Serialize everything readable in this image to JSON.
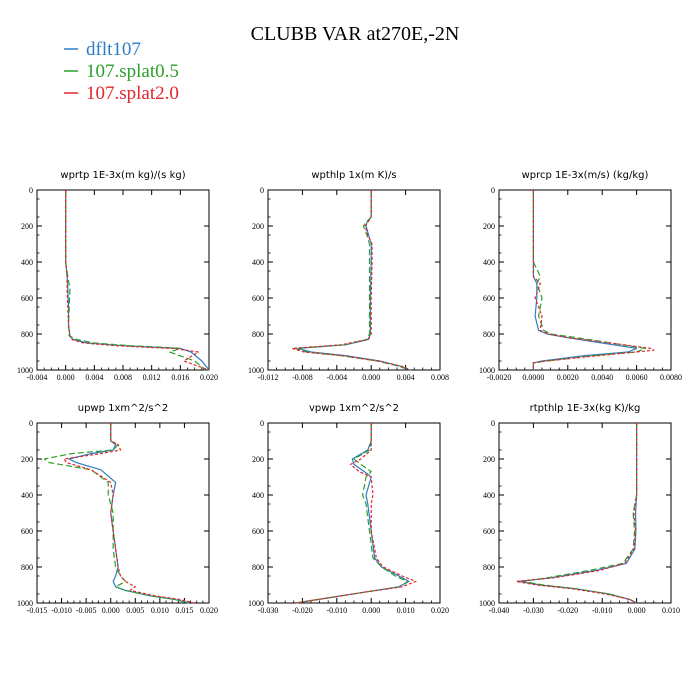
{
  "figure": {
    "title": "CLUBB VAR at270E,-2N"
  },
  "legend": [
    {
      "label": "dflt107",
      "color": "#2e7cc4",
      "dash": ""
    },
    {
      "label": "107.splat0.5",
      "color": "#2ca02c",
      "dash": "6,3"
    },
    {
      "label": "107.splat2.0",
      "color": "#e0262a",
      "dash": "3,2"
    }
  ],
  "chart_data": [
    {
      "type": "line",
      "title": "wprtp  1E-3x(m kg)/(s kg)",
      "xlim": [
        -0.004,
        0.02
      ],
      "xticks": [
        -0.004,
        0.0,
        0.004,
        0.008,
        0.012,
        0.016,
        0.02
      ],
      "xtick_labels": [
        "-0.004",
        "0.000",
        "0.004",
        "0.008",
        "0.012",
        "0.016",
        "0.020"
      ],
      "ylim": [
        1000,
        0
      ],
      "yticks": [
        0,
        200,
        400,
        600,
        800,
        1000
      ],
      "series": [
        {
          "x": [
            0.0,
            0.0,
            0.0,
            0.0002,
            0.0003,
            0.0004,
            0.0004,
            0.0006,
            0.001,
            0.003,
            0.008,
            0.013,
            0.016,
            0.0175,
            0.019,
            0.02
          ],
          "y": [
            0,
            200,
            400,
            480,
            550,
            650,
            750,
            810,
            830,
            850,
            865,
            875,
            880,
            900,
            950,
            1000
          ]
        },
        {
          "x": [
            0.0,
            0.0,
            0.0,
            0.0003,
            0.0006,
            0.0005,
            0.0004,
            0.0005,
            0.0015,
            0.004,
            0.009,
            0.014,
            0.016,
            0.0145,
            0.018,
            0.0195
          ],
          "y": [
            0,
            200,
            400,
            480,
            550,
            650,
            750,
            810,
            830,
            850,
            865,
            875,
            880,
            900,
            950,
            1000
          ]
        },
        {
          "x": [
            0.0,
            0.0,
            0.0,
            0.0002,
            0.0002,
            0.0003,
            0.0004,
            0.0006,
            0.0008,
            0.0025,
            0.007,
            0.012,
            0.015,
            0.0185,
            0.0165,
            0.02
          ],
          "y": [
            0,
            200,
            400,
            480,
            550,
            650,
            750,
            810,
            830,
            850,
            865,
            875,
            880,
            900,
            950,
            1000
          ]
        }
      ]
    },
    {
      "type": "line",
      "title": "wpthlp  1x(m K)/s",
      "xlim": [
        -0.012,
        0.008
      ],
      "xticks": [
        -0.012,
        -0.008,
        -0.004,
        0.0,
        0.004,
        0.008
      ],
      "xtick_labels": [
        "-0.012",
        "-0.008",
        "-0.004",
        "0.000",
        "0.004",
        "0.008"
      ],
      "ylim": [
        1000,
        0
      ],
      "yticks": [
        0,
        200,
        400,
        600,
        800,
        1000
      ],
      "series": [
        {
          "x": [
            0.0,
            0.0,
            -0.0005,
            -0.0006,
            -0.0003,
            0.0,
            0.0,
            -0.0001,
            -0.0001,
            -0.0003,
            -0.003,
            -0.0085,
            -0.007,
            -0.003,
            0.001,
            0.0035,
            0.0045
          ],
          "y": [
            0,
            150,
            180,
            200,
            250,
            300,
            400,
            600,
            800,
            830,
            860,
            880,
            900,
            920,
            950,
            980,
            1000
          ]
        },
        {
          "x": [
            0.0,
            0.0,
            -0.0006,
            -0.0009,
            -0.0005,
            -0.0002,
            -0.0002,
            -0.0002,
            -0.0002,
            -0.0005,
            -0.003,
            -0.0088,
            -0.0075,
            -0.0035,
            0.0007,
            0.0033,
            0.0044
          ],
          "y": [
            0,
            150,
            180,
            200,
            250,
            300,
            400,
            600,
            800,
            830,
            860,
            880,
            900,
            920,
            950,
            980,
            1000
          ]
        },
        {
          "x": [
            0.0,
            0.0,
            -0.0004,
            -0.0007,
            -0.0004,
            0.0001,
            0.0001,
            0.0,
            0.0,
            -0.0004,
            -0.0035,
            -0.0092,
            -0.0078,
            -0.0035,
            0.0008,
            0.0036,
            0.0046
          ],
          "y": [
            0,
            150,
            180,
            200,
            250,
            300,
            400,
            600,
            800,
            830,
            860,
            880,
            900,
            920,
            950,
            980,
            1000
          ]
        }
      ]
    },
    {
      "type": "line",
      "title": "wprcp  1E-3x(m/s) (kg/kg)",
      "xlim": [
        -0.002,
        0.008
      ],
      "xticks": [
        -0.002,
        0.0,
        0.002,
        0.004,
        0.006,
        0.008
      ],
      "xtick_labels": [
        "-0.0020",
        "0.0000",
        "0.0020",
        "0.0040",
        "0.0060",
        "0.0080"
      ],
      "ylim": [
        1000,
        0
      ],
      "yticks": [
        0,
        200,
        400,
        600,
        800,
        1000
      ],
      "series": [
        {
          "x": [
            0.0,
            0.0,
            0.0,
            0.0,
            0.0002,
            0.0002,
            0.0001,
            0.0003,
            0.0008,
            0.002,
            0.004,
            0.006,
            0.0055,
            0.003,
            0.0005,
            0.0,
            0.0
          ],
          "y": [
            0,
            200,
            400,
            480,
            520,
            600,
            700,
            780,
            800,
            820,
            850,
            880,
            900,
            920,
            950,
            960,
            1000
          ]
        },
        {
          "x": [
            0.0,
            0.0,
            0.0,
            0.0004,
            0.0002,
            0.0005,
            0.0003,
            0.0006,
            0.001,
            0.0025,
            0.0045,
            0.0065,
            0.006,
            0.0035,
            0.0008,
            0.0,
            0.0
          ],
          "y": [
            0,
            200,
            400,
            480,
            520,
            600,
            700,
            780,
            800,
            820,
            850,
            880,
            900,
            920,
            950,
            960,
            1000
          ]
        },
        {
          "x": [
            0.0,
            0.0,
            0.0,
            0.0,
            0.0004,
            0.0001,
            0.0005,
            0.0004,
            0.0009,
            0.002,
            0.0045,
            0.0068,
            0.007,
            0.0038,
            0.0007,
            0.0,
            0.0
          ],
          "y": [
            0,
            200,
            400,
            480,
            520,
            600,
            700,
            780,
            800,
            820,
            850,
            880,
            890,
            920,
            950,
            960,
            1000
          ]
        }
      ]
    },
    {
      "type": "line",
      "title": "upwp  1xm^2/s^2",
      "xlim": [
        -0.015,
        0.02
      ],
      "xticks": [
        -0.015,
        -0.01,
        -0.005,
        0.0,
        0.005,
        0.01,
        0.015,
        0.02
      ],
      "xtick_labels": [
        "-0.015",
        "-0.010",
        "-0.005",
        "0.000",
        "0.005",
        "0.010",
        "0.015",
        "0.020"
      ],
      "ylim": [
        1000,
        0
      ],
      "yticks": [
        0,
        200,
        400,
        600,
        800,
        1000
      ],
      "series": [
        {
          "x": [
            0.0,
            0.0,
            0.0,
            0.001,
            0.0005,
            -0.004,
            -0.0085,
            -0.007,
            -0.002,
            0.001,
            0.0005,
            0.0,
            0.0005,
            0.001,
            0.0015,
            0.001,
            0.0005,
            0.001,
            0.003,
            0.008,
            0.013,
            0.016
          ],
          "y": [
            0,
            50,
            100,
            120,
            150,
            170,
            200,
            220,
            260,
            330,
            400,
            500,
            600,
            700,
            800,
            850,
            880,
            910,
            930,
            960,
            980,
            1000
          ]
        },
        {
          "x": [
            0.0,
            0.0,
            0.0,
            0.0015,
            0.0005,
            -0.008,
            -0.0135,
            -0.0125,
            -0.004,
            -0.0005,
            -0.0005,
            0.0005,
            0.0005,
            0.0005,
            0.001,
            0.002,
            0.003,
            0.001,
            0.003,
            0.008,
            0.013,
            0.016
          ],
          "y": [
            0,
            50,
            100,
            120,
            150,
            170,
            200,
            220,
            260,
            330,
            400,
            500,
            600,
            700,
            800,
            850,
            880,
            910,
            930,
            960,
            980,
            1000
          ]
        },
        {
          "x": [
            0.0,
            0.0,
            0.0,
            0.0015,
            0.002,
            -0.002,
            -0.0095,
            -0.009,
            -0.004,
            0.0,
            0.0005,
            0.0,
            0.0005,
            0.001,
            0.0015,
            0.002,
            0.003,
            0.005,
            0.004,
            0.009,
            0.014,
            0.017
          ],
          "y": [
            0,
            50,
            100,
            120,
            150,
            170,
            200,
            220,
            260,
            330,
            400,
            500,
            600,
            700,
            800,
            850,
            880,
            910,
            930,
            960,
            980,
            1000
          ]
        }
      ]
    },
    {
      "type": "line",
      "title": "vpwp  1xm^2/s^2",
      "xlim": [
        -0.03,
        0.02
      ],
      "xticks": [
        -0.03,
        -0.02,
        -0.01,
        0.0,
        0.01,
        0.02
      ],
      "xtick_labels": [
        "-0.030",
        "-0.020",
        "-0.010",
        "0.000",
        "0.010",
        "0.020"
      ],
      "ylim": [
        1000,
        0
      ],
      "yticks": [
        0,
        200,
        400,
        600,
        800,
        1000
      ],
      "series": [
        {
          "x": [
            0.0,
            0.0,
            0.0,
            -0.001,
            -0.0055,
            -0.005,
            -0.002,
            0.0,
            -0.0015,
            -0.001,
            0.0,
            0.001,
            0.003,
            0.008,
            0.011,
            0.008,
            -0.002,
            -0.012,
            -0.022
          ],
          "y": [
            0,
            50,
            100,
            150,
            200,
            230,
            270,
            300,
            400,
            450,
            600,
            750,
            800,
            850,
            880,
            910,
            940,
            970,
            1000
          ]
        },
        {
          "x": [
            0.0,
            0.0,
            0.0,
            -0.0005,
            -0.005,
            -0.003,
            0.0,
            -0.0015,
            -0.0025,
            -0.0015,
            -0.0005,
            0.0005,
            0.003,
            0.007,
            0.0105,
            0.0085,
            -0.002,
            -0.012,
            -0.022
          ],
          "y": [
            0,
            50,
            100,
            150,
            200,
            230,
            270,
            300,
            400,
            450,
            600,
            750,
            800,
            850,
            880,
            910,
            940,
            970,
            1000
          ]
        },
        {
          "x": [
            0.0,
            0.0,
            0.0,
            0.0,
            -0.003,
            -0.006,
            -0.0035,
            0.0,
            0.0005,
            0.0,
            0.0,
            0.0015,
            0.0035,
            0.009,
            0.013,
            0.009,
            -0.002,
            -0.012,
            -0.022
          ],
          "y": [
            0,
            50,
            100,
            150,
            200,
            230,
            270,
            300,
            400,
            450,
            600,
            750,
            800,
            850,
            880,
            910,
            940,
            970,
            1000
          ]
        }
      ]
    },
    {
      "type": "line",
      "title": "rtpthlp  1E-3x(kg K)/kg",
      "xlim": [
        -0.04,
        0.01
      ],
      "xticks": [
        -0.04,
        -0.03,
        -0.02,
        -0.01,
        0.0,
        0.01
      ],
      "xtick_labels": [
        "-0.040",
        "-0.030",
        "-0.020",
        "-0.010",
        "0.000",
        "0.010"
      ],
      "ylim": [
        1000,
        0
      ],
      "yticks": [
        0,
        200,
        400,
        600,
        800,
        1000
      ],
      "series": [
        {
          "x": [
            0.0,
            0.0,
            0.0,
            -0.0003,
            -0.0002,
            -0.0005,
            -0.003,
            -0.012,
            -0.025,
            -0.034,
            -0.028,
            -0.018,
            -0.008,
            -0.002,
            0.0
          ],
          "y": [
            0,
            200,
            400,
            500,
            600,
            700,
            780,
            820,
            860,
            880,
            900,
            920,
            950,
            980,
            1000
          ]
        },
        {
          "x": [
            0.0,
            0.0,
            0.0,
            -0.001,
            -0.0006,
            -0.001,
            -0.004,
            -0.014,
            -0.026,
            -0.033,
            -0.027,
            -0.018,
            -0.008,
            -0.002,
            0.0
          ],
          "y": [
            0,
            200,
            400,
            500,
            600,
            700,
            780,
            820,
            860,
            880,
            900,
            920,
            950,
            980,
            1000
          ]
        },
        {
          "x": [
            0.0,
            0.0,
            0.0,
            -0.0008,
            -0.0003,
            -0.0008,
            -0.0035,
            -0.011,
            -0.024,
            -0.035,
            -0.029,
            -0.019,
            -0.009,
            -0.002,
            0.0
          ],
          "y": [
            0,
            200,
            400,
            500,
            600,
            700,
            780,
            820,
            860,
            880,
            900,
            920,
            950,
            980,
            1000
          ]
        }
      ]
    }
  ]
}
